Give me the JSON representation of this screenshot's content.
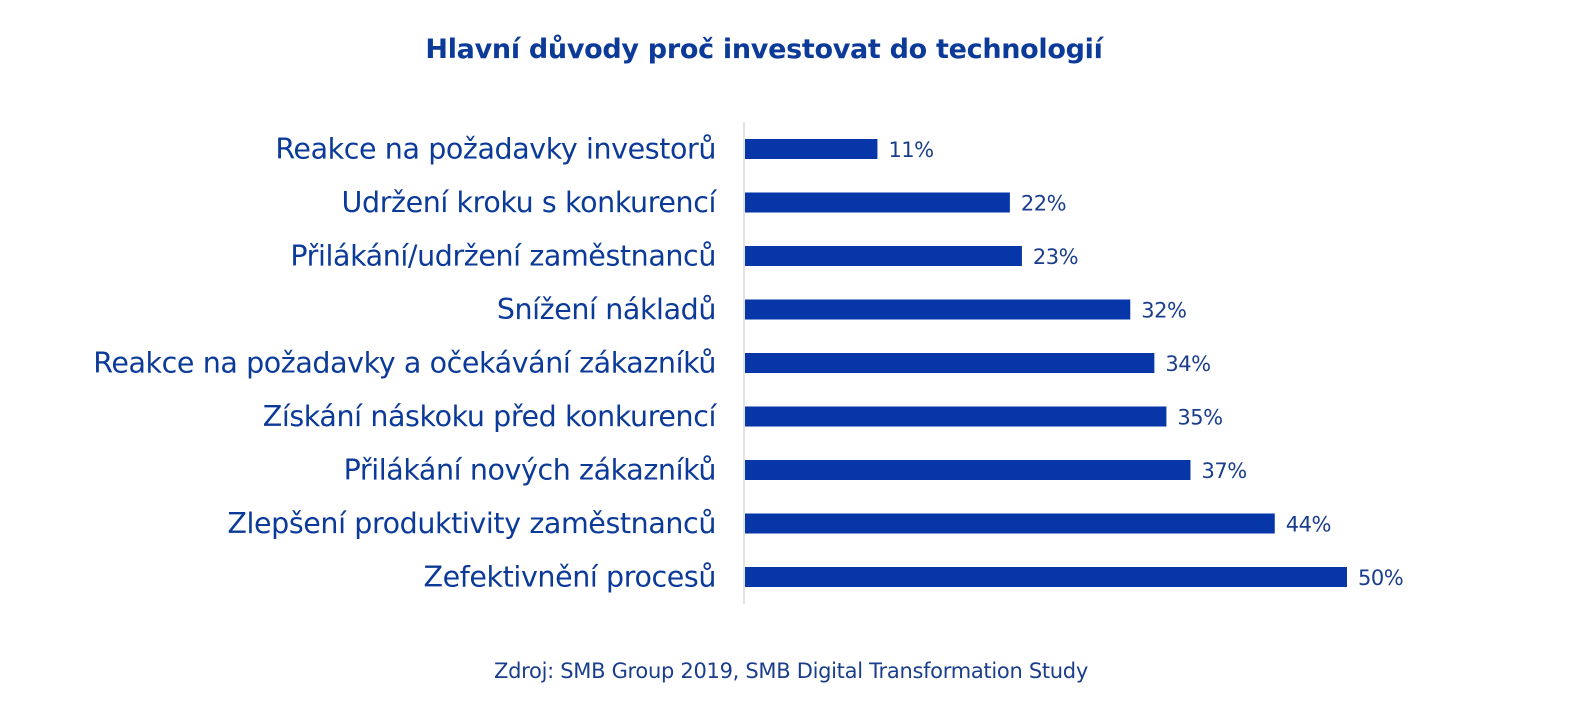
{
  "chart_data": {
    "type": "bar",
    "orientation": "horizontal",
    "title": "Hlavní důvody proč investovat do technologií",
    "categories": [
      "Reakce na požadavky investorů",
      "Udržení kroku s konkurencí",
      "Přilákání/udržení zaměstnanců",
      "Snížení nákladů",
      "Reakce na požadavky a očekávání zákazníků",
      "Získání náskoku před konkurencí",
      "Přilákání nových zákazníků",
      "Zlepšení produktivity zaměstnanců",
      "Zefektivnění procesů"
    ],
    "values": [
      11,
      22,
      23,
      32,
      34,
      35,
      37,
      44,
      50
    ],
    "data_labels": [
      "11%",
      "22%",
      "23%",
      "32%",
      "34%",
      "35%",
      "37%",
      "44%",
      "50%"
    ],
    "value_unit": "%",
    "xlim": [
      0,
      50
    ],
    "grid": false,
    "legend": "none",
    "bar_color": "#0636A8",
    "axis_color": "#D9D9D9"
  },
  "source": "Zdroj: SMB Group 2019, SMB Digital Transformation Study"
}
